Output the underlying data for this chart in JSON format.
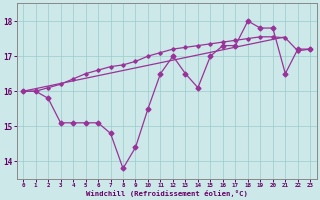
{
  "title": "",
  "xlabel": "Windchill (Refroidissement éolien,°C)",
  "bg_color": "#cce8e8",
  "line_color": "#993399",
  "grid_color": "#99cccc",
  "x_hours": [
    0,
    1,
    2,
    3,
    4,
    5,
    6,
    7,
    8,
    9,
    10,
    11,
    12,
    13,
    14,
    15,
    16,
    17,
    18,
    19,
    20,
    21,
    22,
    23
  ],
  "y_main": [
    16.0,
    16.0,
    15.8,
    15.1,
    15.1,
    15.1,
    15.1,
    14.8,
    13.8,
    14.4,
    15.5,
    16.5,
    17.0,
    16.5,
    16.1,
    17.0,
    17.3,
    17.3,
    18.0,
    17.8,
    17.8,
    16.5,
    17.2,
    17.2
  ],
  "y_smooth": [
    16.0,
    16.0,
    16.1,
    16.2,
    16.35,
    16.5,
    16.6,
    16.7,
    16.75,
    16.85,
    17.0,
    17.1,
    17.2,
    17.25,
    17.3,
    17.35,
    17.4,
    17.45,
    17.5,
    17.55,
    17.55,
    17.52,
    17.15,
    17.2
  ],
  "trend_x": [
    0,
    21
  ],
  "trend_y": [
    16.0,
    17.55
  ],
  "ylim": [
    13.5,
    18.5
  ],
  "xlim": [
    -0.5,
    23.5
  ],
  "yticks": [
    14,
    15,
    16,
    17,
    18
  ],
  "xticks": [
    0,
    1,
    2,
    3,
    4,
    5,
    6,
    7,
    8,
    9,
    10,
    11,
    12,
    13,
    14,
    15,
    16,
    17,
    18,
    19,
    20,
    21,
    22,
    23
  ],
  "tick_color": "#660066",
  "spine_color": "#888888"
}
